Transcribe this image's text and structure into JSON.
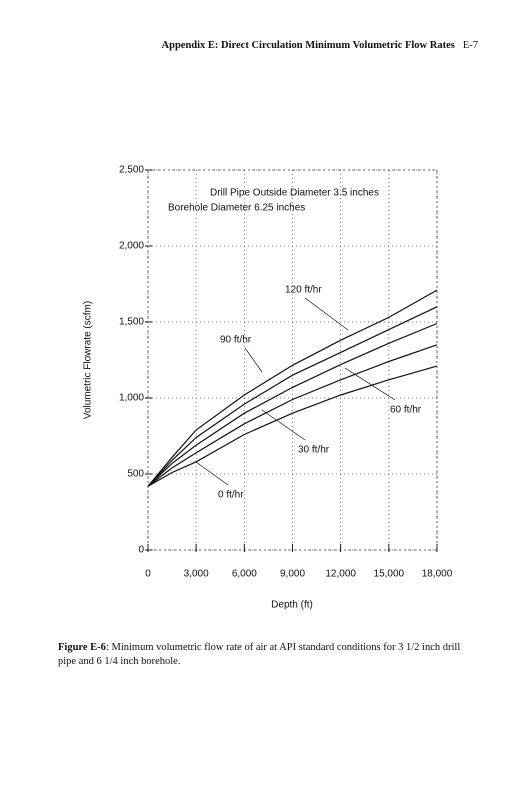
{
  "header": {
    "title": "Appendix E: Direct Circulation Minimum Volumetric Flow Rates",
    "page": "E-7"
  },
  "chart_data": {
    "type": "line",
    "x_label": "Depth (ft)",
    "y_label": "Volumetric Flowrate (scfm)",
    "annotations": [
      "Drill Pipe Outside Diameter 3.5 inches",
      "Borehole Diameter 6.25 inches"
    ],
    "x": [
      0,
      1500,
      3000,
      6000,
      9000,
      12000,
      15000,
      18000
    ],
    "series": [
      {
        "name": "0 ft/hr",
        "color": "#111111",
        "values": [
          420,
          510,
          580,
          760,
          900,
          1020,
          1120,
          1210
        ]
      },
      {
        "name": "30 ft/hr",
        "color": "#111111",
        "values": [
          420,
          540,
          640,
          830,
          990,
          1120,
          1240,
          1350
        ]
      },
      {
        "name": "60 ft/hr",
        "color": "#111111",
        "values": [
          420,
          570,
          690,
          900,
          1070,
          1220,
          1360,
          1490
        ]
      },
      {
        "name": "90 ft/hr",
        "color": "#111111",
        "values": [
          420,
          590,
          740,
          960,
          1150,
          1300,
          1450,
          1600
        ]
      },
      {
        "name": "120 ft/hr",
        "color": "#111111",
        "values": [
          420,
          610,
          790,
          1020,
          1215,
          1380,
          1530,
          1710
        ]
      }
    ],
    "xlim": [
      0,
      18000
    ],
    "xticks": [
      0,
      {
        "value": 3000,
        "label": "3,000"
      },
      {
        "value": 6000,
        "label": "6,000"
      },
      {
        "value": 9000,
        "label": "9,000"
      },
      {
        "value": 12000,
        "label": "12,000"
      },
      {
        "value": 15000,
        "label": "15,000"
      },
      {
        "value": 18000,
        "label": "18,000"
      }
    ],
    "ylim": [
      0,
      2500
    ],
    "yticks": [
      0,
      500,
      {
        "value": 1000,
        "label": "1,000"
      },
      {
        "value": 1500,
        "label": "1,500"
      },
      {
        "value": 2000,
        "label": "2,000"
      },
      {
        "value": 2500,
        "label": "2,500"
      }
    ],
    "grid": true
  },
  "caption": {
    "label": "Figure E-6",
    "text": ": Minimum volumetric flow rate of air at API standard conditions for 3 1/2 inch drill pipe and 6 1/4 inch borehole."
  }
}
